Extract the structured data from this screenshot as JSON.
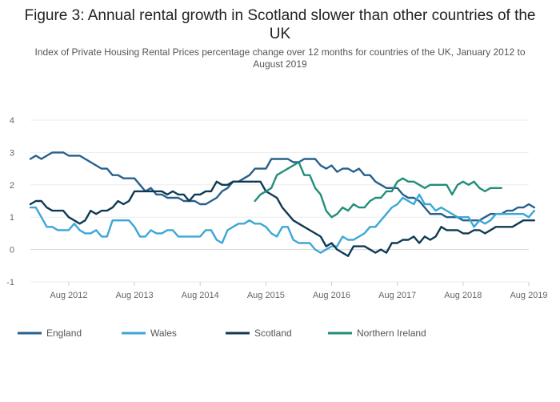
{
  "chart_data": {
    "type": "line",
    "title": "Figure 3: Annual rental growth in Scotland slower than other countries of the UK",
    "subtitle": "Index of Private Housing Rental Prices percentage change over 12 months for countries of the UK, January 2012 to August 2019",
    "xlabel": "",
    "ylabel": "",
    "ylim": [
      -1,
      4
    ],
    "yticks": [
      "-1",
      "0",
      "1",
      "2",
      "3",
      "4"
    ],
    "x_start": "Jan 2012",
    "x_end": "Aug 2019",
    "xticks": [
      "Aug 2012",
      "Aug 2013",
      "Aug 2014",
      "Aug 2015",
      "Aug 2016",
      "Aug 2017",
      "Aug 2018",
      "Aug 2019"
    ],
    "xtick_month_index": [
      7,
      19,
      31,
      43,
      55,
      67,
      79,
      91
    ],
    "legend_position": "bottom",
    "series": [
      {
        "name": "England",
        "color": "#27608c",
        "start_index": 0,
        "values": [
          2.8,
          2.9,
          2.8,
          2.9,
          3.0,
          3.0,
          3.0,
          2.9,
          2.9,
          2.9,
          2.8,
          2.7,
          2.6,
          2.5,
          2.5,
          2.3,
          2.3,
          2.2,
          2.2,
          2.2,
          2.0,
          1.8,
          1.9,
          1.7,
          1.7,
          1.6,
          1.6,
          1.6,
          1.5,
          1.5,
          1.5,
          1.4,
          1.4,
          1.5,
          1.6,
          1.8,
          1.9,
          2.1,
          2.1,
          2.2,
          2.3,
          2.5,
          2.5,
          2.5,
          2.8,
          2.8,
          2.8,
          2.8,
          2.7,
          2.7,
          2.8,
          2.8,
          2.8,
          2.6,
          2.5,
          2.6,
          2.4,
          2.5,
          2.5,
          2.4,
          2.5,
          2.3,
          2.3,
          2.1,
          2.0,
          1.9,
          1.9,
          1.9,
          1.7,
          1.6,
          1.6,
          1.5,
          1.3,
          1.1,
          1.1,
          1.1,
          1.0,
          1.0,
          1.0,
          0.9,
          0.9,
          0.9,
          0.9,
          1.0,
          1.1,
          1.1,
          1.1,
          1.2,
          1.2,
          1.3,
          1.3,
          1.4,
          1.3
        ]
      },
      {
        "name": "Wales",
        "color": "#3ba7d6",
        "start_index": 0,
        "values": [
          1.3,
          1.3,
          1.0,
          0.7,
          0.7,
          0.6,
          0.6,
          0.6,
          0.8,
          0.6,
          0.5,
          0.5,
          0.6,
          0.4,
          0.4,
          0.9,
          0.9,
          0.9,
          0.9,
          0.7,
          0.4,
          0.4,
          0.6,
          0.5,
          0.5,
          0.6,
          0.6,
          0.4,
          0.4,
          0.4,
          0.4,
          0.4,
          0.6,
          0.6,
          0.3,
          0.2,
          0.6,
          0.7,
          0.8,
          0.8,
          0.9,
          0.8,
          0.8,
          0.7,
          0.5,
          0.4,
          0.7,
          0.7,
          0.3,
          0.2,
          0.2,
          0.2,
          0.0,
          -0.1,
          0.0,
          0.1,
          0.1,
          0.4,
          0.3,
          0.3,
          0.4,
          0.5,
          0.7,
          0.7,
          0.9,
          1.1,
          1.3,
          1.4,
          1.6,
          1.5,
          1.4,
          1.7,
          1.4,
          1.4,
          1.2,
          1.3,
          1.2,
          1.1,
          1.0,
          1.0,
          1.0,
          0.7,
          0.9,
          0.8,
          0.9,
          1.1,
          1.1,
          1.1,
          1.1,
          1.1,
          1.1,
          1.0,
          1.2
        ]
      },
      {
        "name": "Scotland",
        "color": "#0f3a52",
        "start_index": 0,
        "values": [
          1.4,
          1.5,
          1.5,
          1.3,
          1.2,
          1.2,
          1.2,
          1.0,
          0.9,
          0.8,
          0.9,
          1.2,
          1.1,
          1.2,
          1.2,
          1.3,
          1.5,
          1.4,
          1.5,
          1.8,
          1.8,
          1.8,
          1.8,
          1.8,
          1.8,
          1.7,
          1.8,
          1.7,
          1.7,
          1.5,
          1.7,
          1.7,
          1.8,
          1.8,
          2.1,
          2.0,
          2.0,
          2.1,
          2.1,
          2.1,
          2.1,
          2.1,
          2.1,
          1.8,
          1.7,
          1.6,
          1.3,
          1.1,
          0.9,
          0.8,
          0.7,
          0.6,
          0.5,
          0.4,
          0.1,
          0.2,
          0.0,
          -0.1,
          -0.2,
          0.1,
          0.1,
          0.1,
          0.0,
          -0.1,
          0.0,
          -0.1,
          0.2,
          0.2,
          0.3,
          0.3,
          0.4,
          0.2,
          0.4,
          0.3,
          0.4,
          0.7,
          0.6,
          0.6,
          0.6,
          0.5,
          0.5,
          0.6,
          0.6,
          0.5,
          0.6,
          0.7,
          0.7,
          0.7,
          0.7,
          0.8,
          0.9,
          0.9,
          0.9
        ]
      },
      {
        "name": "Northern Ireland",
        "color": "#218e7a",
        "start_index": 41,
        "values": [
          1.5,
          1.7,
          1.8,
          1.9,
          2.3,
          2.4,
          2.5,
          2.6,
          2.7,
          2.3,
          2.3,
          1.9,
          1.7,
          1.2,
          1.0,
          1.1,
          1.3,
          1.2,
          1.4,
          1.3,
          1.3,
          1.5,
          1.6,
          1.6,
          1.8,
          1.8,
          2.1,
          2.2,
          2.1,
          2.1,
          2.0,
          1.9,
          2.0,
          2.0,
          2.0,
          2.0,
          1.7,
          2.0,
          2.1,
          2.0,
          2.1,
          1.9,
          1.8,
          1.9,
          1.9,
          1.9
        ]
      }
    ]
  }
}
